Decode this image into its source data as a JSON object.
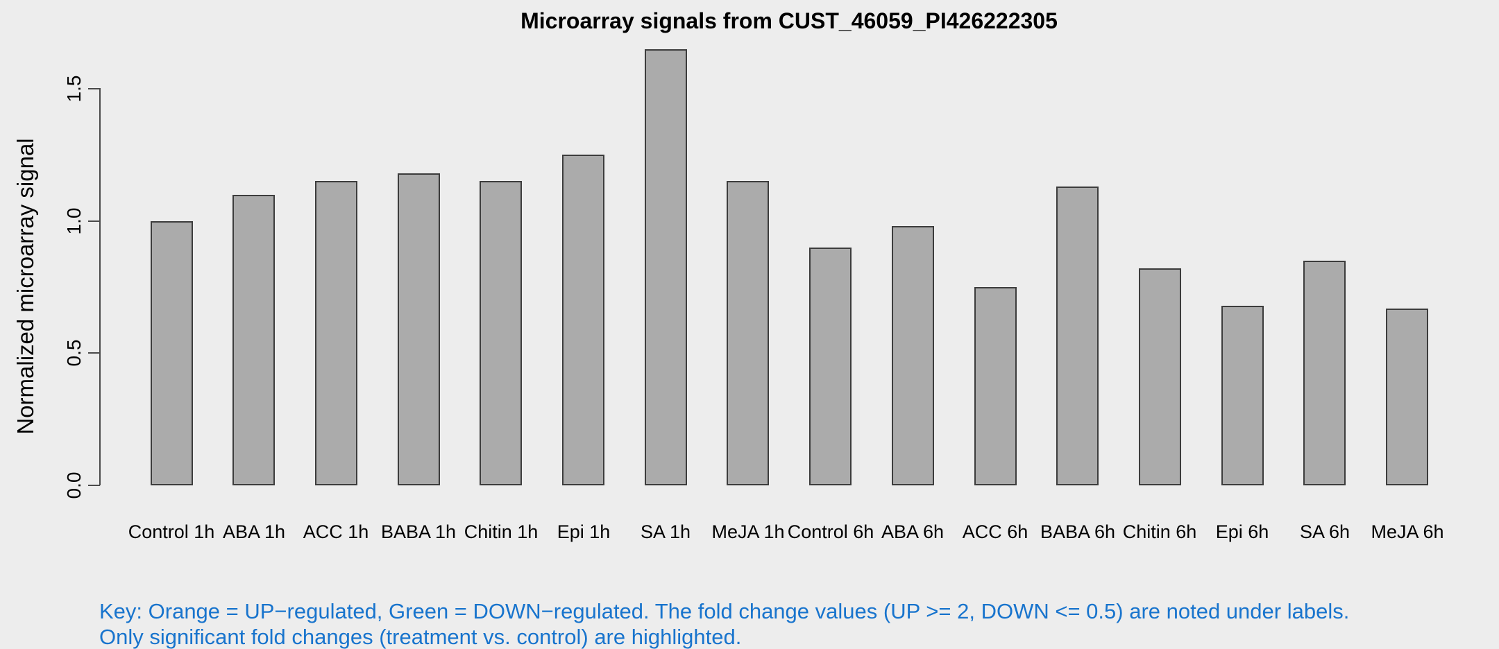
{
  "title": "Microarray signals from CUST_46059_PI426222305",
  "y_axis": {
    "label": "Normalized microarray signal",
    "tick_labels": [
      "0.0",
      "0.5",
      "1.0",
      "1.5"
    ]
  },
  "key": {
    "line1": "Key: Orange = UP−regulated, Green = DOWN−regulated. The fold change values (UP >= 2, DOWN <= 0.5) are noted under labels.",
    "line2": "Only significant fold changes (treatment vs. control) are highlighted.",
    "color": "#1874CD"
  },
  "colors": {
    "background": "#EDEDED",
    "bar_fill": "#ABABAB",
    "bar_border": "#3C3C3C",
    "axis": "#4A4A4A",
    "text": "#000000"
  },
  "chart_data": {
    "type": "bar",
    "title": "Microarray signals from CUST_46059_PI426222305",
    "xlabel": "",
    "ylabel": "Normalized microarray signal",
    "categories": [
      "Control 1h",
      "ABA 1h",
      "ACC 1h",
      "BABA 1h",
      "Chitin 1h",
      "Epi 1h",
      "SA 1h",
      "MeJA 1h",
      "Control 6h",
      "ABA 6h",
      "ACC 6h",
      "BABA 6h",
      "Chitin 6h",
      "Epi 6h",
      "SA 6h",
      "MeJA 6h"
    ],
    "values": [
      1.0,
      1.1,
      1.15,
      1.18,
      1.15,
      1.25,
      1.65,
      1.15,
      0.9,
      0.98,
      0.75,
      1.13,
      0.82,
      0.68,
      0.85,
      0.67
    ],
    "yticks": [
      0.0,
      0.5,
      1.0,
      1.5
    ],
    "ylim": [
      0,
      1.65
    ],
    "grid": false,
    "legend": false
  }
}
